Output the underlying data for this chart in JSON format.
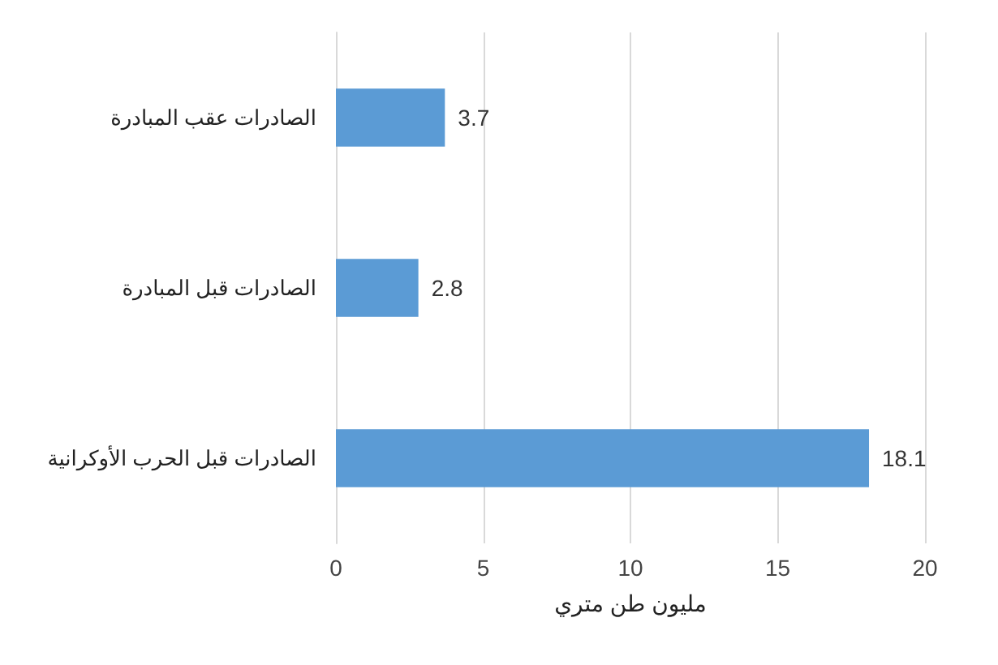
{
  "chart_data": {
    "type": "bar",
    "orientation": "horizontal",
    "categories": [
      "الصادرات عقب المبادرة",
      "الصادرات قبل المبادرة",
      "الصادرات قبل الحرب الأوكرانية"
    ],
    "values": [
      3.7,
      2.8,
      18.1
    ],
    "color": "#5b9bd5",
    "data_labels": true,
    "xlabel": "مليون طن متري",
    "xlim": [
      0,
      20
    ],
    "xticks": [
      0,
      5,
      10,
      15,
      20
    ],
    "grid": "x"
  }
}
